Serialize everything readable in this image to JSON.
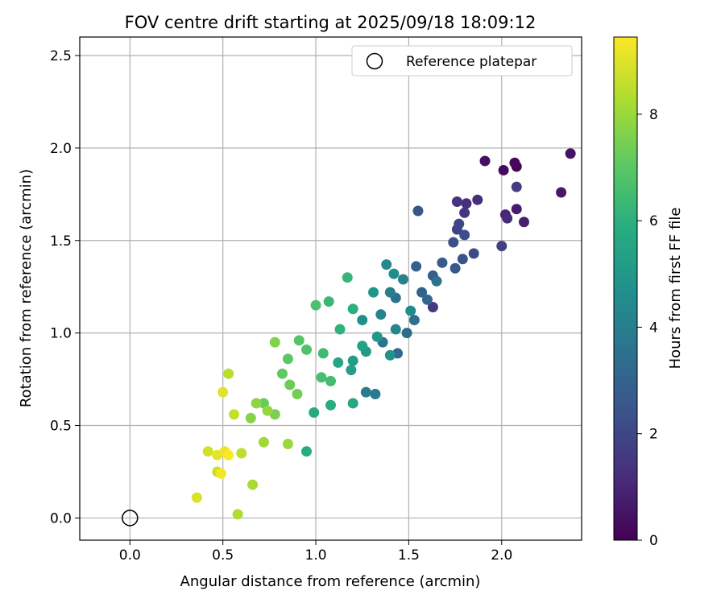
{
  "chart_data": {
    "type": "scatter",
    "title": "FOV centre drift starting at 2025/09/18 18:09:12",
    "xlabel": "Angular distance from reference (arcmin)",
    "ylabel": "Rotation from reference (arcmin)",
    "xlim": [
      -0.27,
      2.43
    ],
    "ylim": [
      -0.12,
      2.6
    ],
    "x_ticks": [
      "0.0",
      "0.5",
      "1.0",
      "1.5",
      "2.0"
    ],
    "y_ticks": [
      "0.0",
      "0.5",
      "1.0",
      "1.5",
      "2.0",
      "2.5"
    ],
    "grid": true,
    "legend": {
      "placement": "top-right",
      "entries": [
        "Reference platepar"
      ]
    },
    "reference_point": {
      "name": "Reference platepar",
      "x": 0.0,
      "y": 0.0,
      "marker": "open-circle"
    },
    "colorbar": {
      "label": "Hours from first FF file",
      "min": 0,
      "max": 9.45,
      "ticks": [
        "0",
        "2",
        "4",
        "6",
        "8"
      ],
      "colormap": "viridis"
    },
    "series": [
      {
        "name": "",
        "columns": [
          "x",
          "y",
          "hours"
        ],
        "points": [
          [
            2.08,
            1.9,
            0.1
          ],
          [
            2.07,
            1.92,
            0.2
          ],
          [
            2.01,
            1.88,
            0.3
          ],
          [
            1.91,
            1.93,
            0.4
          ],
          [
            2.37,
            1.97,
            0.5
          ],
          [
            2.32,
            1.76,
            0.6
          ],
          [
            2.08,
            1.67,
            0.7
          ],
          [
            2.12,
            1.6,
            0.8
          ],
          [
            2.02,
            1.64,
            1.0
          ],
          [
            2.03,
            1.62,
            1.1
          ],
          [
            1.87,
            1.72,
            1.2
          ],
          [
            1.81,
            1.7,
            1.3
          ],
          [
            1.76,
            1.71,
            1.4
          ],
          [
            1.8,
            1.65,
            1.5
          ],
          [
            1.63,
            1.14,
            1.6
          ],
          [
            2.08,
            1.79,
            1.7
          ],
          [
            2.0,
            1.47,
            1.8
          ],
          [
            1.76,
            1.56,
            1.9
          ],
          [
            1.77,
            1.59,
            2.0
          ],
          [
            1.85,
            1.43,
            2.1
          ],
          [
            1.8,
            1.53,
            2.2
          ],
          [
            1.74,
            1.49,
            2.3
          ],
          [
            1.79,
            1.4,
            2.4
          ],
          [
            1.55,
            1.66,
            2.5
          ],
          [
            1.75,
            1.35,
            2.6
          ],
          [
            1.68,
            1.38,
            2.7
          ],
          [
            1.63,
            1.31,
            2.8
          ],
          [
            1.54,
            1.36,
            2.9
          ],
          [
            1.57,
            1.22,
            3.0
          ],
          [
            1.6,
            1.18,
            3.1
          ],
          [
            1.44,
            0.89,
            3.2
          ],
          [
            1.49,
            1.0,
            3.3
          ],
          [
            1.53,
            1.07,
            3.4
          ],
          [
            1.65,
            1.28,
            3.5
          ],
          [
            1.43,
            1.19,
            3.6
          ],
          [
            1.36,
            0.95,
            3.7
          ],
          [
            1.32,
            0.67,
            3.8
          ],
          [
            1.27,
            0.68,
            3.9
          ],
          [
            1.4,
            1.22,
            4.0
          ],
          [
            1.47,
            1.29,
            4.1
          ],
          [
            1.35,
            1.1,
            4.2
          ],
          [
            1.43,
            1.02,
            4.3
          ],
          [
            1.38,
            1.37,
            4.4
          ],
          [
            1.51,
            1.12,
            4.5
          ],
          [
            1.42,
            1.32,
            4.6
          ],
          [
            1.25,
            1.07,
            4.7
          ],
          [
            1.4,
            0.88,
            4.8
          ],
          [
            1.31,
            1.22,
            4.9
          ],
          [
            1.33,
            0.98,
            5.0
          ],
          [
            1.27,
            0.9,
            5.1
          ],
          [
            1.2,
            0.85,
            5.2
          ],
          [
            1.19,
            0.8,
            5.3
          ],
          [
            1.25,
            0.93,
            5.4
          ],
          [
            1.12,
            0.84,
            5.5
          ],
          [
            1.2,
            0.62,
            5.6
          ],
          [
            0.99,
            0.57,
            5.7
          ],
          [
            0.95,
            0.36,
            5.8
          ],
          [
            1.08,
            0.61,
            5.9
          ],
          [
            1.2,
            1.13,
            6.0
          ],
          [
            1.13,
            1.02,
            6.1
          ],
          [
            1.17,
            1.3,
            6.2
          ],
          [
            1.07,
            1.17,
            6.3
          ],
          [
            1.04,
            0.89,
            6.4
          ],
          [
            1.08,
            0.74,
            6.5
          ],
          [
            1.03,
            0.76,
            6.6
          ],
          [
            1.0,
            1.15,
            6.7
          ],
          [
            0.95,
            0.91,
            6.8
          ],
          [
            0.91,
            0.96,
            6.9
          ],
          [
            0.85,
            0.86,
            7.0
          ],
          [
            0.82,
            0.78,
            7.1
          ],
          [
            0.72,
            0.62,
            7.2
          ],
          [
            0.86,
            0.72,
            7.3
          ],
          [
            0.9,
            0.67,
            7.4
          ],
          [
            0.78,
            0.56,
            7.5
          ],
          [
            0.78,
            0.95,
            7.6
          ],
          [
            0.65,
            0.54,
            7.7
          ],
          [
            0.68,
            0.62,
            7.8
          ],
          [
            0.74,
            0.58,
            7.9
          ],
          [
            0.85,
            0.4,
            8.0
          ],
          [
            0.72,
            0.41,
            8.1
          ],
          [
            0.66,
            0.18,
            8.2
          ],
          [
            0.58,
            0.02,
            8.3
          ],
          [
            0.53,
            0.78,
            8.4
          ],
          [
            0.6,
            0.35,
            8.5
          ],
          [
            0.56,
            0.56,
            8.6
          ],
          [
            0.47,
            0.25,
            8.7
          ],
          [
            0.42,
            0.36,
            8.8
          ],
          [
            0.36,
            0.11,
            8.9
          ],
          [
            0.5,
            0.68,
            9.0
          ],
          [
            0.47,
            0.34,
            9.1
          ],
          [
            0.51,
            0.36,
            9.2
          ],
          [
            0.49,
            0.24,
            9.3
          ],
          [
            0.53,
            0.34,
            9.4
          ]
        ]
      }
    ]
  }
}
